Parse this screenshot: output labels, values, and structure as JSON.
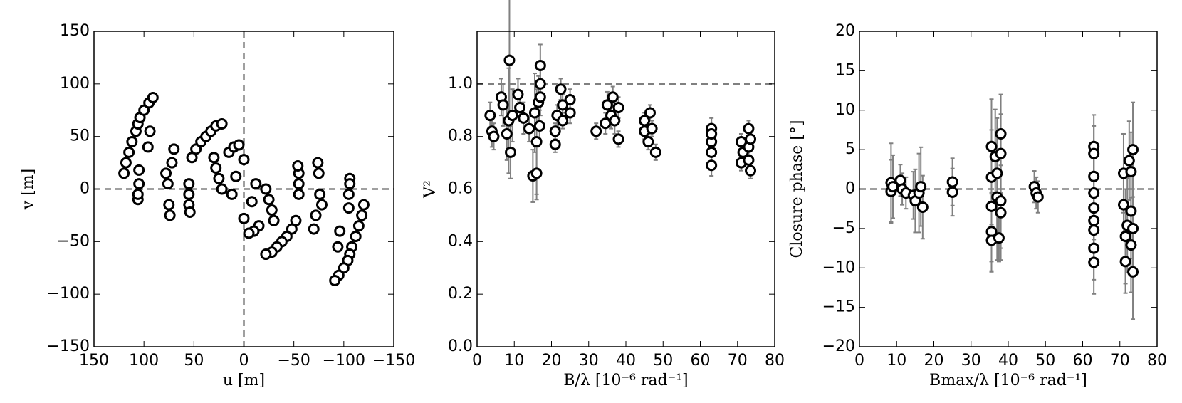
{
  "chart_data": [
    {
      "type": "scatter",
      "xlabel": "u [m]",
      "ylabel": "v [m]",
      "color": "#000000",
      "xlim": [
        150,
        -150
      ],
      "ylim": [
        -150,
        150
      ],
      "xticks": [
        150,
        100,
        50,
        0,
        {
          "value": -50,
          "label": "−50"
        },
        {
          "value": -100,
          "label": "−100"
        },
        {
          "value": -150,
          "label": "−150"
        }
      ],
      "yticks": [
        {
          "value": -150,
          "label": "−150"
        },
        {
          "value": -100,
          "label": "−100"
        },
        {
          "value": -50,
          "label": "−50"
        },
        0,
        50,
        100,
        150
      ],
      "hline": 0,
      "vline": 0,
      "x": [
        120,
        118,
        115,
        112,
        108,
        106,
        104,
        100,
        95,
        91,
        106,
        106,
        105,
        105,
        96,
        94,
        78,
        76,
        75,
        74,
        72,
        70,
        55,
        55,
        55,
        54,
        52,
        48,
        43,
        38,
        33,
        28,
        22,
        30,
        28,
        25,
        22,
        15,
        10,
        5,
        0,
        8,
        12,
        -120,
        -118,
        -115,
        -112,
        -108,
        -106,
        -104,
        -100,
        -95,
        -91,
        -106,
        -106,
        -105,
        -105,
        -96,
        -94,
        -78,
        -76,
        -75,
        -74,
        -72,
        -70,
        -55,
        -55,
        -55,
        -54,
        -52,
        -48,
        -43,
        -38,
        -33,
        -28,
        -22,
        -30,
        -28,
        -25,
        -22,
        -15,
        -10,
        -5,
        0,
        -8,
        -12
      ],
      "y": [
        15,
        25,
        35,
        45,
        55,
        62,
        68,
        75,
        82,
        87,
        -10,
        -5,
        5,
        18,
        40,
        55,
        15,
        5,
        -15,
        -25,
        25,
        38,
        5,
        -5,
        -15,
        -22,
        30,
        38,
        45,
        50,
        55,
        60,
        62,
        30,
        20,
        10,
        0,
        35,
        40,
        42,
        28,
        12,
        -5,
        -15,
        -25,
        -35,
        -45,
        -55,
        -62,
        -68,
        -75,
        -82,
        -87,
        10,
        5,
        -5,
        -18,
        -40,
        -55,
        -15,
        -5,
        15,
        25,
        -25,
        -38,
        -5,
        5,
        15,
        22,
        -30,
        -38,
        -45,
        -50,
        -55,
        -60,
        -62,
        -30,
        -20,
        -10,
        0,
        -35,
        -40,
        -42,
        -28,
        -12,
        5
      ]
    },
    {
      "type": "scatter",
      "xlabel": "B/λ [10⁻⁶ rad⁻¹]",
      "ylabel": "V²",
      "color": "#000000",
      "error_color": "#808080",
      "xlim": [
        0,
        80
      ],
      "ylim": [
        0,
        1.2
      ],
      "xticks": [
        0,
        10,
        20,
        30,
        40,
        50,
        60,
        70,
        80
      ],
      "yticks": [
        {
          "value": 0,
          "label": "0.0"
        },
        0.2,
        0.4,
        0.6,
        0.8,
        {
          "value": 1,
          "label": "1.0"
        }
      ],
      "hline": 1,
      "x": [
        3.5,
        4,
        4.5,
        6.5,
        7,
        8,
        8.5,
        8.7,
        9,
        9.5,
        11,
        11.5,
        12.5,
        14,
        15,
        15.5,
        16,
        16,
        16.5,
        17,
        17,
        17,
        16.8,
        21,
        21,
        21.5,
        22.5,
        23,
        23,
        25,
        25,
        32,
        34.5,
        35,
        36,
        36.5,
        37,
        38,
        38,
        45,
        45,
        46,
        46.5,
        47,
        48,
        63,
        63,
        63,
        63,
        63,
        71,
        71,
        71.5,
        73,
        73,
        73.5,
        73.5,
        73
      ],
      "y": [
        0.88,
        0.82,
        0.8,
        0.95,
        0.92,
        0.81,
        0.86,
        1.09,
        0.74,
        0.88,
        0.96,
        0.91,
        0.87,
        0.83,
        0.65,
        0.89,
        0.78,
        0.66,
        0.93,
        1.07,
        1.0,
        0.95,
        0.84,
        0.77,
        0.82,
        0.88,
        0.98,
        0.92,
        0.86,
        0.94,
        0.89,
        0.82,
        0.85,
        0.92,
        0.88,
        0.95,
        0.86,
        0.79,
        0.91,
        0.86,
        0.82,
        0.78,
        0.89,
        0.83,
        0.74,
        0.83,
        0.78,
        0.74,
        0.69,
        0.81,
        0.78,
        0.7,
        0.74,
        0.83,
        0.76,
        0.79,
        0.67,
        0.71
      ],
      "errors": [
        0.05,
        0.06,
        0.05,
        0.07,
        0.08,
        0.1,
        0.2,
        0.25,
        0.1,
        0.1,
        0.06,
        0.05,
        0.06,
        0.05,
        0.1,
        0.15,
        0.2,
        0.1,
        0.1,
        0.08,
        0.08,
        0.07,
        0.06,
        0.03,
        0.03,
        0.04,
        0.04,
        0.04,
        0.03,
        0.04,
        0.04,
        0.03,
        0.04,
        0.05,
        0.05,
        0.04,
        0.05,
        0.03,
        0.04,
        0.03,
        0.03,
        0.03,
        0.03,
        0.03,
        0.03,
        0.04,
        0.04,
        0.04,
        0.04,
        0.03,
        0.03,
        0.03,
        0.03,
        0.03,
        0.03,
        0.03,
        0.03,
        0.03
      ]
    },
    {
      "type": "scatter",
      "xlabel": "Bmax/λ [10⁻⁶ rad⁻¹]",
      "ylabel": "Closure phase [°]",
      "color": "#000000",
      "error_color": "#808080",
      "xlim": [
        0,
        80
      ],
      "ylim": [
        -20,
        20
      ],
      "xticks": [
        0,
        10,
        20,
        30,
        40,
        50,
        60,
        70,
        80
      ],
      "yticks": [
        {
          "value": -20,
          "label": "−20"
        },
        {
          "value": -15,
          "label": "−15"
        },
        {
          "value": -10,
          "label": "−10"
        },
        {
          "value": -5,
          "label": "−5"
        },
        0,
        5,
        10,
        15,
        20
      ],
      "hline": 0,
      "x": [
        8.5,
        8.5,
        9,
        11,
        11.5,
        12.5,
        14.5,
        15,
        16,
        16.5,
        17,
        25,
        25,
        35.5,
        35.5,
        35.5,
        35.5,
        35.5,
        36.5,
        37,
        37,
        37.5,
        38,
        38,
        38,
        38,
        47,
        47.5,
        48,
        63,
        63,
        63,
        63,
        63,
        63,
        63,
        63,
        63,
        71,
        71,
        71.5,
        71.5,
        72,
        72.5,
        73,
        73,
        73,
        73.5,
        73.5,
        73.5
      ],
      "y": [
        0.8,
        -0.3,
        0.3,
        1.1,
        0,
        -0.5,
        -0.8,
        -1.5,
        -0.5,
        0.3,
        -2.3,
        0.9,
        -0.4,
        5.4,
        1.5,
        -2.2,
        -5.4,
        -6.5,
        4.1,
        2,
        -1,
        -6.2,
        7,
        4.5,
        -1.5,
        -3,
        0.3,
        -0.5,
        -1,
        5.4,
        4.5,
        1.6,
        -0.5,
        -2.4,
        -4,
        -5.2,
        -7.5,
        -9.3,
        2,
        -2,
        -6,
        -9.2,
        -4.6,
        3.6,
        2.2,
        -2.8,
        -7.1,
        -10.5,
        5,
        -5
      ],
      "errors": [
        5,
        4,
        4,
        2,
        2,
        2,
        3,
        4,
        5,
        5,
        4,
        3,
        3,
        6,
        6,
        7,
        5,
        4,
        6,
        7,
        8,
        3,
        5,
        5,
        6,
        6,
        2,
        2,
        2,
        4,
        3.5,
        4,
        5,
        4,
        4,
        4,
        4,
        4,
        5,
        4,
        6,
        4,
        6,
        5,
        5,
        6,
        6,
        6,
        6,
        5
      ]
    }
  ]
}
